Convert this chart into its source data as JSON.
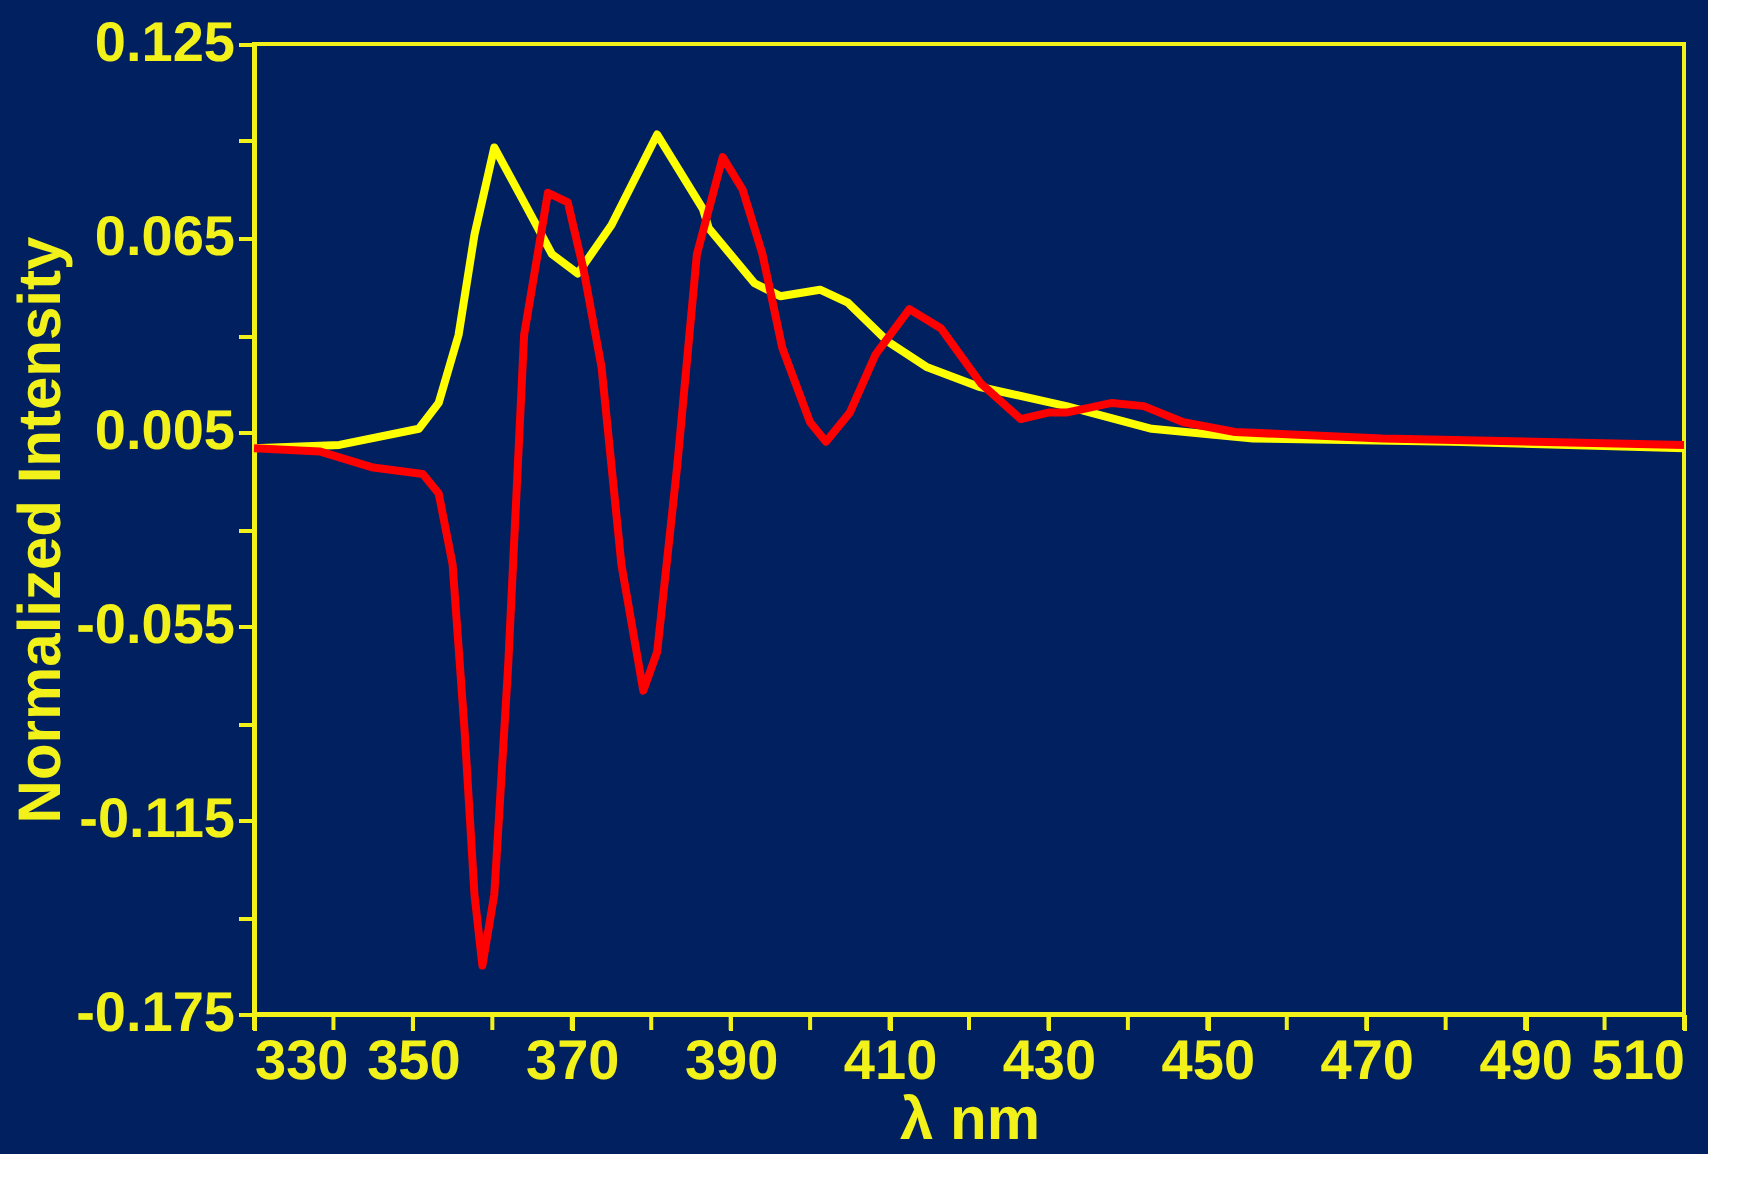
{
  "chart_data": {
    "type": "line",
    "xlabel": "λ nm",
    "ylabel": "Normalized Intensity",
    "xlim": [
      330,
      510
    ],
    "xticks": [
      330,
      {
        "value": 340,
        "label": null
      },
      350,
      {
        "value": 360,
        "label": null
      },
      370,
      {
        "value": 380,
        "label": null
      },
      390,
      {
        "value": 400,
        "label": null
      },
      410,
      {
        "value": 420,
        "label": null
      },
      430,
      {
        "value": 440,
        "label": null
      },
      450,
      {
        "value": 460,
        "label": null
      },
      470,
      {
        "value": 480,
        "label": null
      },
      490,
      {
        "value": 500,
        "label": null
      },
      510
    ],
    "ylim": [
      -0.175,
      0.125
    ],
    "yticks": [
      -0.175,
      {
        "value": -0.145,
        "label": null
      },
      {
        "value": -0.115,
        "label": "-0.115"
      },
      {
        "value": -0.085,
        "label": null
      },
      {
        "value": -0.055,
        "label": "-0.055"
      },
      {
        "value": -0.025,
        "label": null
      },
      {
        "value": 0.005,
        "label": "0.005"
      },
      {
        "value": 0.035,
        "label": null
      },
      {
        "value": 0.065,
        "label": "0.065"
      },
      {
        "value": 0.095,
        "label": null
      },
      {
        "value": 0.125,
        "label": "0.125"
      }
    ],
    "grid": false,
    "marker": "none",
    "line_style": "solid",
    "series": [
      {
        "color": "#ffff00",
        "x": [
          330,
          340.75,
          350.75,
          353.25,
          355.75,
          357.75,
          360.25,
          364,
          367.5,
          370.75,
          375,
          380.75,
          386.5,
          387.25,
          393,
          396.25,
          401.25,
          404.75,
          409.75,
          414.75,
          421.25,
          432.25,
          443,
          455.75,
          480.75,
          510
        ],
        "values": [
          0.0,
          0.001,
          0.006,
          0.014,
          0.035,
          0.066,
          0.093,
          0.076,
          0.06,
          0.054,
          0.069,
          0.097,
          0.074,
          0.068,
          0.051,
          0.047,
          0.049,
          0.045,
          0.033,
          0.025,
          0.019,
          0.013,
          0.006,
          0.003,
          0.002,
          0.0
        ]
      },
      {
        "color": "#ff0000",
        "x": [
          330,
          338.25,
          345,
          351.25,
          353.25,
          355,
          356.5,
          357.75,
          358.75,
          360.25,
          362,
          364,
          367,
          369.5,
          371.5,
          373.75,
          376.25,
          379,
          380.75,
          383.25,
          385.75,
          389,
          391.5,
          394,
          396.5,
          400,
          402,
          405,
          408.25,
          412.5,
          416.5,
          421.5,
          426.5,
          430,
          432.25,
          438,
          442,
          447,
          453.5,
          472,
          510
        ],
        "values": [
          0.0,
          -0.001,
          -0.006,
          -0.008,
          -0.014,
          -0.036,
          -0.087,
          -0.138,
          -0.16,
          -0.138,
          -0.067,
          0.035,
          0.079,
          0.076,
          0.055,
          0.025,
          -0.036,
          -0.075,
          -0.063,
          -0.006,
          0.06,
          0.09,
          0.08,
          0.06,
          0.031,
          0.008,
          0.002,
          0.011,
          0.029,
          0.043,
          0.037,
          0.02,
          0.009,
          0.011,
          0.011,
          0.014,
          0.013,
          0.008,
          0.005,
          0.003,
          0.001
        ]
      }
    ]
  }
}
